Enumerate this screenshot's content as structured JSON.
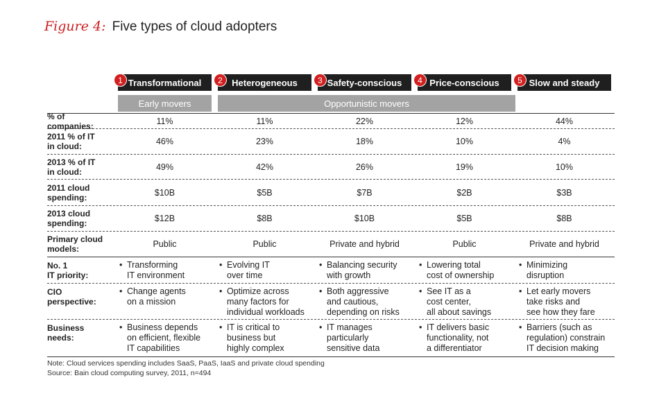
{
  "figure": {
    "label": "Figure 4:",
    "title": "Five types of cloud adopters"
  },
  "columns": [
    {
      "number": "1",
      "name": "Transformational"
    },
    {
      "number": "2",
      "name": "Heterogeneous"
    },
    {
      "number": "3",
      "name": "Safety-conscious"
    },
    {
      "number": "4",
      "name": "Price-conscious"
    },
    {
      "number": "5",
      "name": "Slow and steady"
    }
  ],
  "groups": {
    "early": "Early movers",
    "opportunistic": "Opportunistic movers"
  },
  "rows": [
    {
      "label": [
        "% of companies:"
      ],
      "values": [
        "11%",
        "11%",
        "22%",
        "12%",
        "44%"
      ]
    },
    {
      "label": [
        "2011 % of IT",
        "in cloud:"
      ],
      "values": [
        "46%",
        "23%",
        "18%",
        "10%",
        "4%"
      ]
    },
    {
      "label": [
        "2013 % of IT",
        "in cloud:"
      ],
      "values": [
        "49%",
        "42%",
        "26%",
        "19%",
        "10%"
      ]
    },
    {
      "label": [
        "2011 cloud",
        "spending:"
      ],
      "values": [
        "$10B",
        "$5B",
        "$7B",
        "$2B",
        "$3B"
      ]
    },
    {
      "label": [
        "2013 cloud",
        "spending:"
      ],
      "values": [
        "$12B",
        "$8B",
        "$10B",
        "$5B",
        "$8B"
      ]
    },
    {
      "label": [
        "Primary cloud",
        "models:"
      ],
      "values": [
        "Public",
        "Public",
        "Private and hybrid",
        "Public",
        "Private and hybrid"
      ]
    }
  ],
  "bullet_rows": [
    {
      "label": [
        "No. 1",
        "IT priority:"
      ],
      "values": [
        "Transforming\nIT environment",
        "Evolving IT\nover time",
        "Balancing security\nwith growth",
        "Lowering total\ncost of ownership",
        "Minimizing\ndisruption"
      ]
    },
    {
      "label": [
        "CIO",
        "perspective:"
      ],
      "values": [
        "Change agents\non a mission",
        "Optimize across\nmany factors for\nindividual workloads",
        "Both aggressive\nand cautious,\ndepending on risks",
        "See IT as a\ncost center,\nall about savings",
        "Let early movers\ntake risks and\nsee how they fare"
      ]
    },
    {
      "label": [
        "Business",
        "needs:"
      ],
      "values": [
        "Business depends\non efficient, flexible\nIT capabilities",
        "IT is critical to\nbusiness but\nhighly complex",
        "IT manages\nparticularly\nsensitive data",
        "IT delivers basic\nfunctionality, not\na differentiator",
        "Barriers (such as\nregulation) constrain\nIT decision making"
      ]
    }
  ],
  "bullet_char": "•",
  "notes": {
    "note": "Note: Cloud services spending includes SaaS, PaaS, IaaS and private cloud spending",
    "source": "Source: Bain cloud computing survey, 2011, n=494"
  },
  "colors": {
    "accent": "#cc1f1f",
    "badge": "#d21f1f",
    "header_bg": "#1f1f1f",
    "group_bg": "#a3a3a3"
  }
}
